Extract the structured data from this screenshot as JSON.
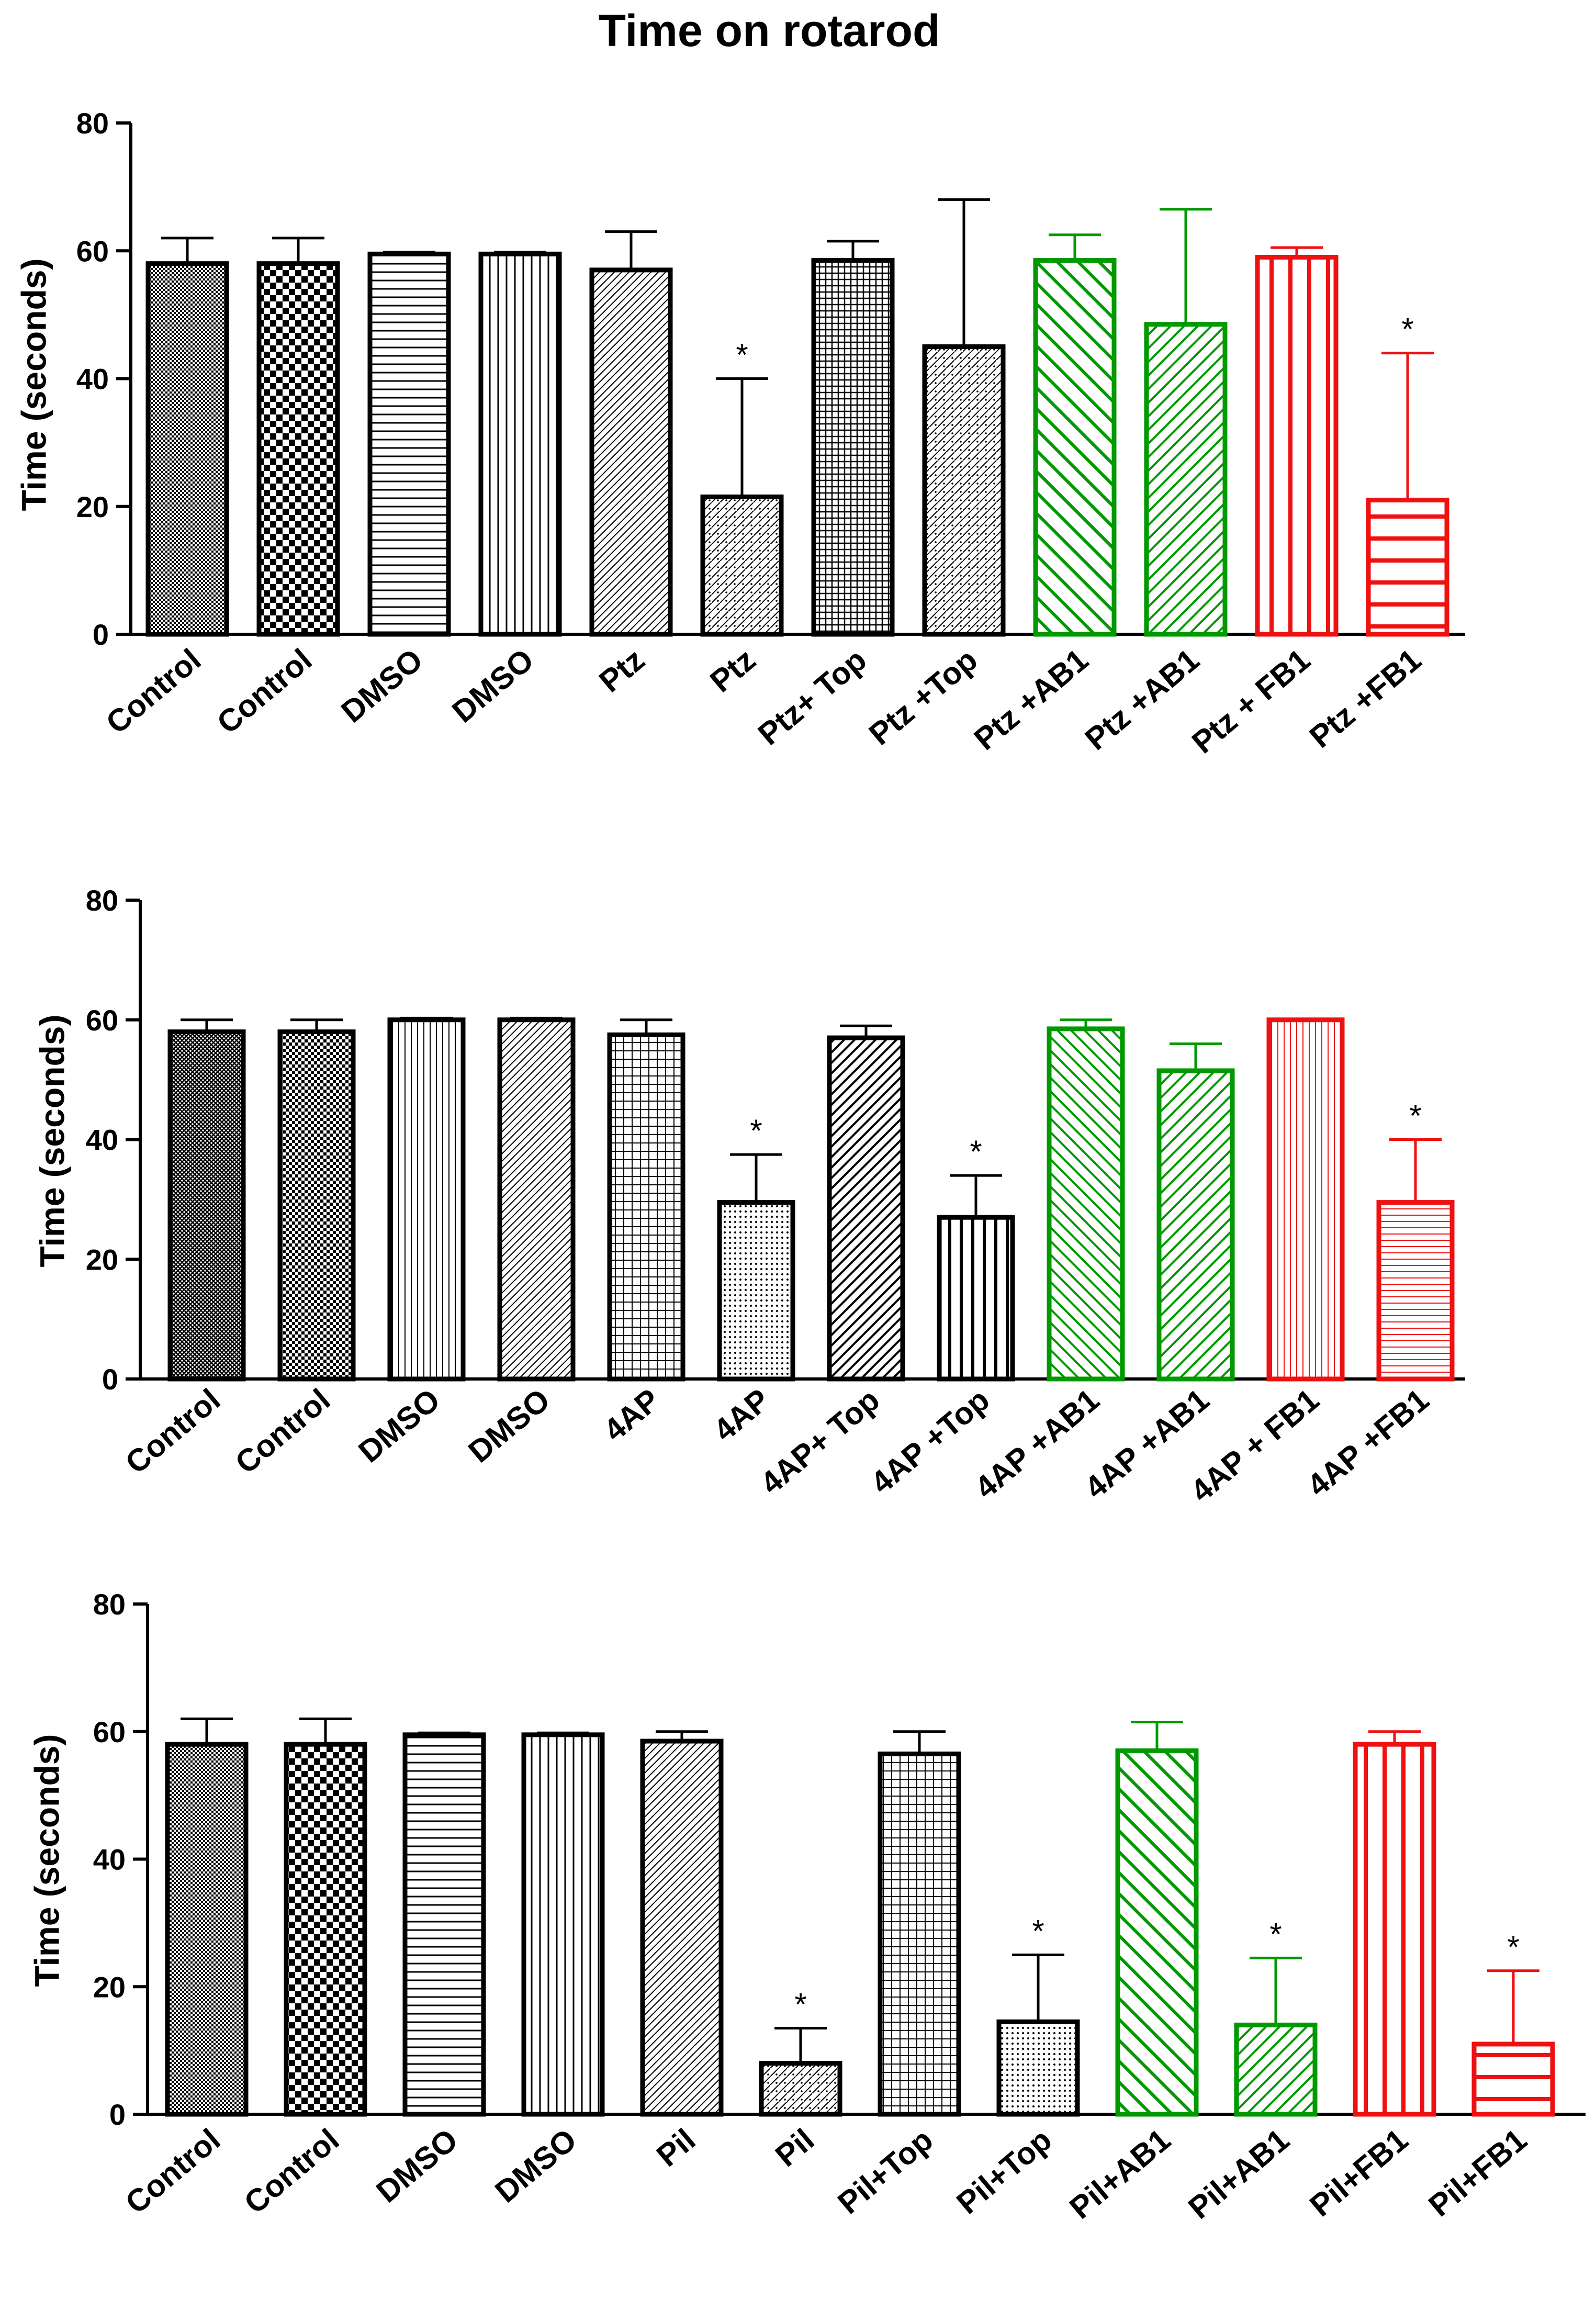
{
  "figure_title": "Time on rotarod",
  "colors": {
    "black": "#000000",
    "green": "#009900",
    "red": "#ee1111"
  },
  "chart_data": [
    {
      "type": "bar",
      "title": "",
      "xlabel": "",
      "ylabel": "Time (seconds)",
      "ylim": [
        0,
        80
      ],
      "yticks": [
        "0",
        "20",
        "40",
        "60",
        "80"
      ],
      "categories": [
        "Control",
        "Control",
        "DMSO",
        "DMSO",
        "Ptz",
        "Ptz",
        "Ptz+ Top",
        "Ptz +Top",
        "Ptz +AB1",
        "Ptz +AB1",
        "Ptz + FB1",
        "Ptz +FB1"
      ],
      "values": [
        58,
        58,
        59.5,
        59.5,
        57,
        21.5,
        58.5,
        45,
        58.5,
        48.5,
        59,
        21
      ],
      "errors": [
        4,
        4,
        0.3,
        0.3,
        6,
        18.5,
        3,
        23,
        4,
        18,
        1.5,
        23
      ],
      "significant": [
        false,
        false,
        false,
        false,
        false,
        true,
        false,
        false,
        false,
        false,
        false,
        true
      ],
      "sig_label": "*",
      "series_colors": [
        "black",
        "black",
        "black",
        "black",
        "black",
        "black",
        "black",
        "black",
        "green",
        "green",
        "red",
        "red"
      ],
      "patterns": [
        "fine-dots",
        "checker",
        "hlines",
        "vlines",
        "diag-fine",
        "diag-dots",
        "dense-grid",
        "diag-dots",
        "diag-back-wide",
        "diag-fwd",
        "vlines-wide",
        "hlines-wide"
      ]
    },
    {
      "type": "bar",
      "title": "",
      "xlabel": "",
      "ylabel": "Time (seconds)",
      "ylim": [
        0,
        80
      ],
      "yticks": [
        "0",
        "20",
        "40",
        "60",
        "80"
      ],
      "categories": [
        "Control",
        "Control",
        "DMSO",
        "DMSO",
        "4AP",
        "4AP",
        "4AP+ Top",
        "4AP +Top",
        "4AP +AB1",
        "4AP +AB1",
        "4AP + FB1",
        "4AP +FB1"
      ],
      "values": [
        58,
        58,
        60,
        60,
        57.5,
        29.5,
        57,
        27,
        58.5,
        51.5,
        60,
        29.5
      ],
      "errors": [
        2,
        2,
        0.3,
        0.3,
        2.5,
        8,
        2,
        7,
        1.5,
        4.5,
        0,
        10.5
      ],
      "significant": [
        false,
        false,
        false,
        false,
        false,
        true,
        false,
        true,
        false,
        false,
        false,
        true
      ],
      "sig_label": "*",
      "series_colors": [
        "black",
        "black",
        "black",
        "black",
        "black",
        "black",
        "black",
        "black",
        "green",
        "green",
        "red",
        "red"
      ],
      "patterns": [
        "dense-cross",
        "checker-fine",
        "vlines-fine",
        "diag-fine",
        "grid",
        "dots",
        "diag-bold",
        "vlines-bold",
        "diag-back",
        "diag-fwd",
        "vlines-fine",
        "hlines-fine"
      ]
    },
    {
      "type": "bar",
      "title": "",
      "xlabel": "",
      "ylabel": "Time (seconds)",
      "ylim": [
        0,
        80
      ],
      "yticks": [
        "0",
        "20",
        "40",
        "60",
        "80"
      ],
      "categories": [
        "Control",
        "Control",
        "DMSO",
        "DMSO",
        "Pil",
        "Pil",
        "Pil+Top",
        "Pil+Top",
        "Pil+AB1",
        "Pil+AB1",
        "Pil+FB1",
        "Pil+FB1"
      ],
      "values": [
        58,
        58,
        59.5,
        59.5,
        58.5,
        8,
        56.5,
        14.5,
        57,
        14,
        58,
        11
      ],
      "errors": [
        4,
        4,
        0.3,
        0.3,
        1.5,
        5.5,
        3.5,
        10.5,
        4.5,
        10.5,
        2,
        11.5
      ],
      "significant": [
        false,
        false,
        false,
        false,
        false,
        true,
        false,
        true,
        false,
        true,
        false,
        true
      ],
      "sig_label": "*",
      "series_colors": [
        "black",
        "black",
        "black",
        "black",
        "black",
        "black",
        "black",
        "black",
        "green",
        "green",
        "red",
        "red"
      ],
      "patterns": [
        "fine-dots",
        "checker",
        "hlines",
        "vlines",
        "diag-fine",
        "diag-dots",
        "grid",
        "dots",
        "diag-back-wide",
        "diag-fwd",
        "vlines-wide",
        "hlines-wide"
      ]
    }
  ]
}
